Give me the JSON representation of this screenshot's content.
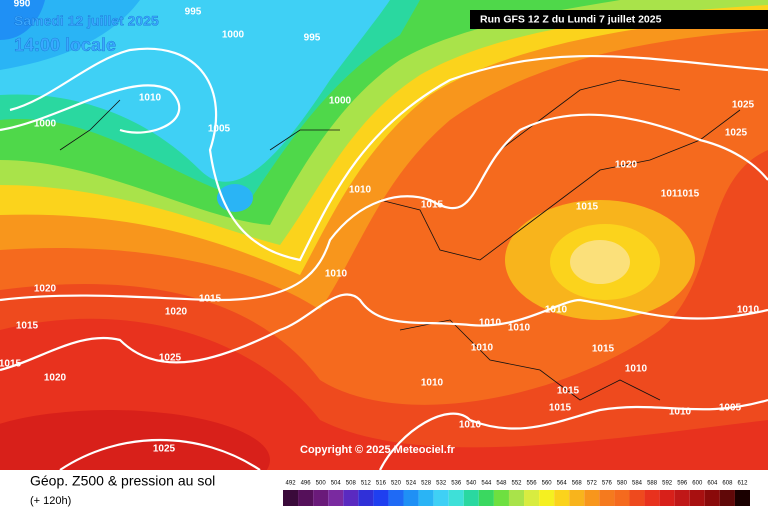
{
  "header": {
    "date": "Samedi 12 juillet 2025",
    "time": "14:00 locale",
    "run": "Run GFS 12 Z du Lundi 7 juillet 2025"
  },
  "copyright": "Copyright © 2025 Meteociel.fr",
  "legend": {
    "title": "Géop. Z500 & pression au sol",
    "subtitle": "(+ 120h)",
    "levels": [
      492,
      496,
      500,
      504,
      508,
      512,
      516,
      520,
      524,
      528,
      532,
      536,
      540,
      544,
      548,
      552,
      556,
      560,
      564,
      568,
      572,
      576,
      580,
      584,
      588,
      592,
      596,
      600,
      604,
      608,
      612
    ],
    "colors": [
      "#3a0a3a",
      "#55105a",
      "#6a1a7a",
      "#7a2aa0",
      "#5a2ac0",
      "#3030d8",
      "#1f3ff0",
      "#1f6af5",
      "#1f90f5",
      "#2ab4f5",
      "#3fd0f5",
      "#3ee0d8",
      "#2ad8a0",
      "#3ad860",
      "#6ee040",
      "#a9e34a",
      "#d8ec40",
      "#f5f020",
      "#fbd31c",
      "#f8b41c",
      "#f8961c",
      "#f57a1e",
      "#f56a1e",
      "#ee4a1e",
      "#e8321e",
      "#d8201a",
      "#c01818",
      "#a81010",
      "#8a0a0a",
      "#600808",
      "#1a0000"
    ]
  },
  "isobars": [
    "990",
    "995",
    "1000",
    "995",
    "1010",
    "1000",
    "1000",
    "1005",
    "1010",
    "1015",
    "1010",
    "1015",
    "1020",
    "1020",
    "1015",
    "1015",
    "1025",
    "1020",
    "1025",
    "1025",
    "1025",
    "1020",
    "1015",
    "1011015",
    "1010",
    "1010",
    "1010",
    "1010",
    "1010",
    "1015",
    "1010",
    "1010",
    "1015",
    "1015",
    "1010",
    "1010",
    "1005"
  ]
}
